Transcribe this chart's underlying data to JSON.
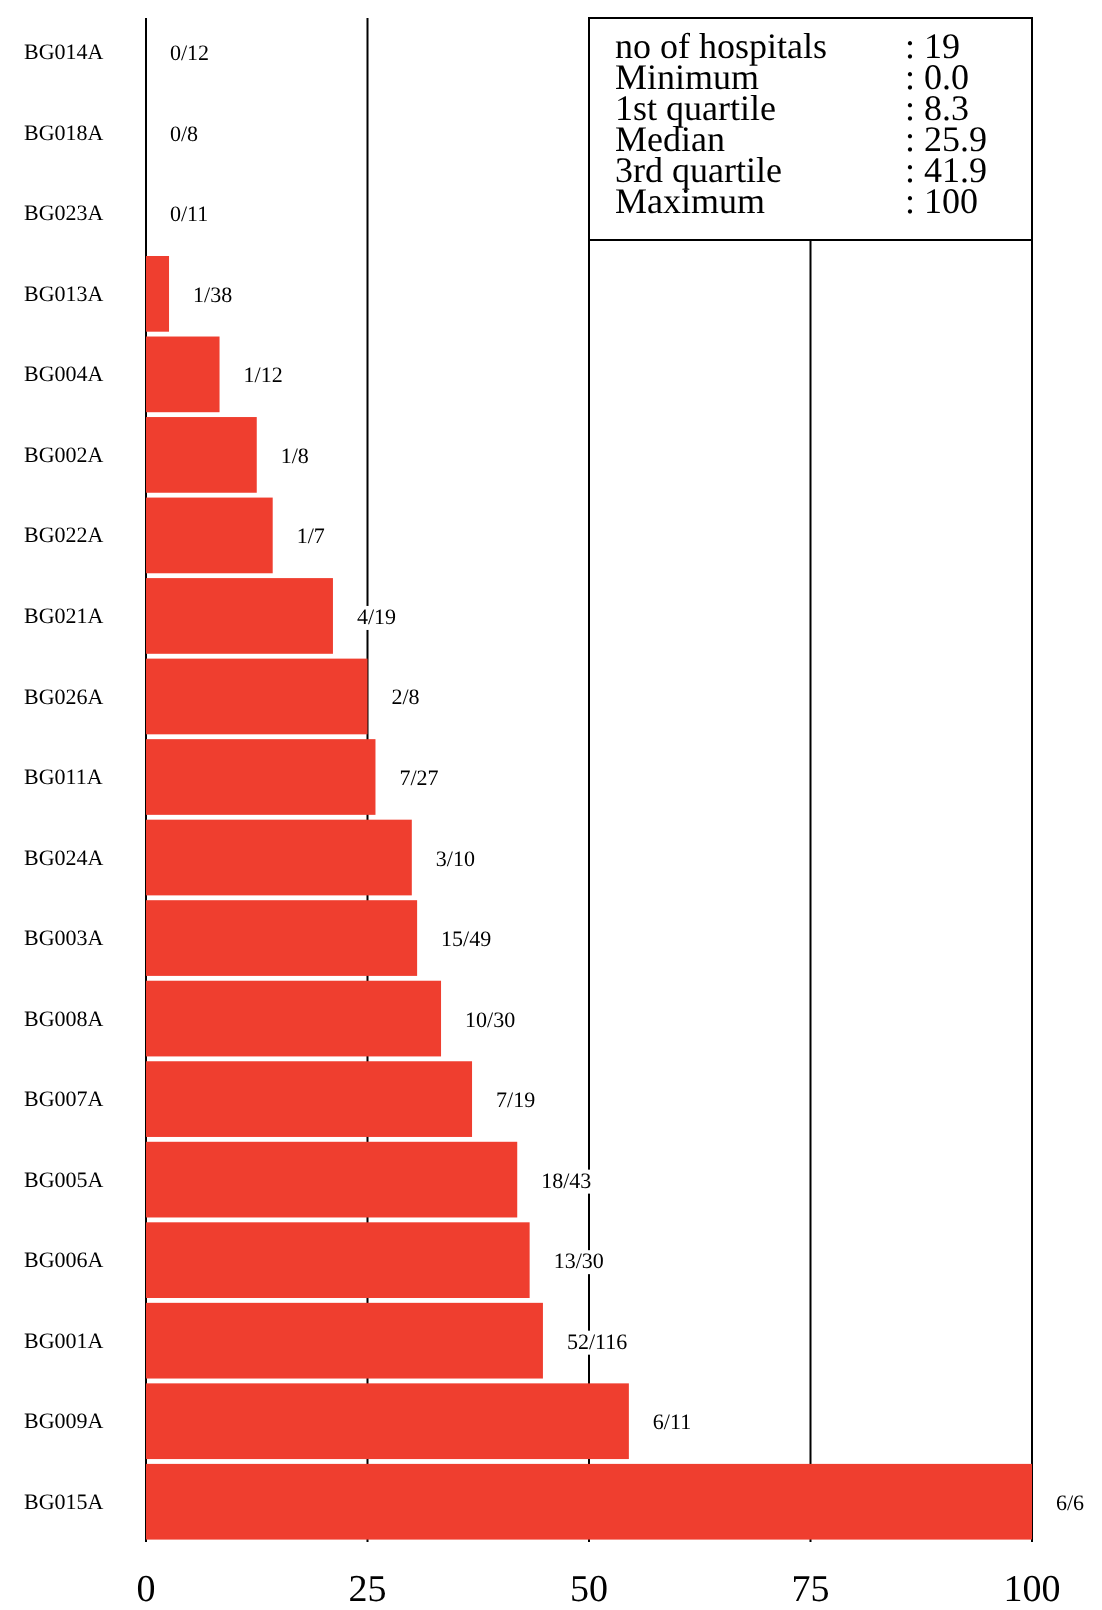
{
  "chart_data": {
    "type": "bar",
    "orientation": "horizontal",
    "categories": [
      "BG014A",
      "BG018A",
      "BG023A",
      "BG013A",
      "BG004A",
      "BG002A",
      "BG022A",
      "BG021A",
      "BG026A",
      "BG011A",
      "BG024A",
      "BG003A",
      "BG008A",
      "BG007A",
      "BG005A",
      "BG006A",
      "BG001A",
      "BG009A",
      "BG015A"
    ],
    "values": [
      0,
      0,
      0,
      2.6,
      8.3,
      12.5,
      14.3,
      21.1,
      25.0,
      25.9,
      30.0,
      30.6,
      33.3,
      36.8,
      41.9,
      43.3,
      44.8,
      54.5,
      100
    ],
    "color": "#ef3e2f",
    "xlim": [
      0,
      100
    ],
    "xticks": [
      0,
      25,
      50,
      75,
      100
    ],
    "grid": "x",
    "annotations": [
      "no of hospitals : 19",
      "Minimum : 0.0",
      "1st quartile : 8.3",
      "Median : 25.9",
      "3rd quartile : 41.9",
      "Maximum : 100",
      {
        "text": "0/12",
        "x": 0,
        "y": "BG014A"
      },
      {
        "text": "0/8",
        "x": 0,
        "y": "BG018A"
      },
      {
        "text": "0/11",
        "x": 0,
        "y": "BG023A"
      },
      {
        "text": "1/38",
        "x": 2.6,
        "y": "BG013A"
      },
      {
        "text": "1/12",
        "x": 8.3,
        "y": "BG004A"
      },
      {
        "text": "1/8",
        "x": 12.5,
        "y": "BG002A"
      },
      {
        "text": "1/7",
        "x": 14.3,
        "y": "BG022A"
      },
      {
        "text": "4/19",
        "x": 21.1,
        "y": "BG021A"
      },
      {
        "text": "2/8",
        "x": 25.0,
        "y": "BG026A"
      },
      {
        "text": "7/27",
        "x": 25.9,
        "y": "BG011A"
      },
      {
        "text": "3/10",
        "x": 30.0,
        "y": "BG024A"
      },
      {
        "text": "15/49",
        "x": 30.6,
        "y": "BG003A"
      },
      {
        "text": "10/30",
        "x": 33.3,
        "y": "BG008A"
      },
      {
        "text": "7/19",
        "x": 36.8,
        "y": "BG007A"
      },
      {
        "text": "18/43",
        "x": 41.9,
        "y": "BG005A"
      },
      {
        "text": "13/30",
        "x": 43.3,
        "y": "BG006A"
      },
      {
        "text": "52/116",
        "x": 44.8,
        "y": "BG001A"
      },
      {
        "text": "6/11",
        "x": 54.5,
        "y": "BG009A"
      },
      {
        "text": "6/6",
        "x": 100,
        "y": "BG015A"
      }
    ]
  }
}
